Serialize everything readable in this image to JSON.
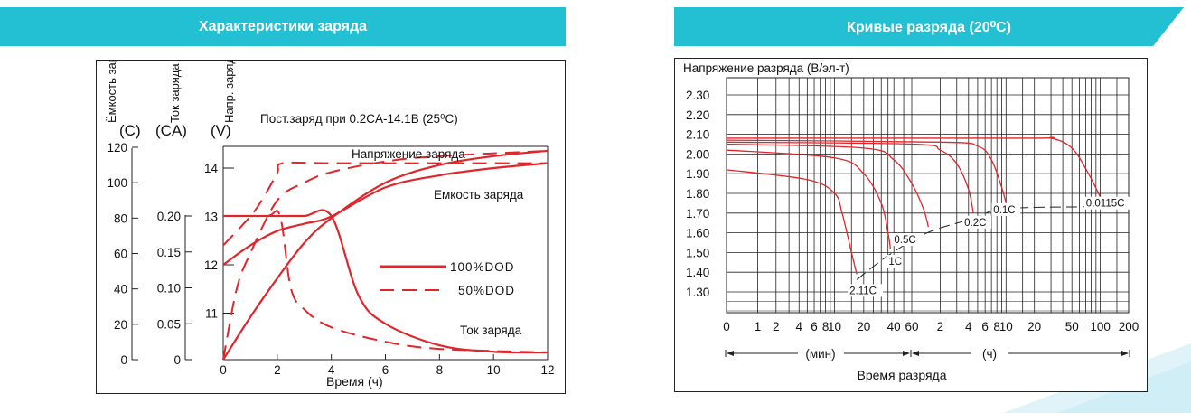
{
  "colors": {
    "banner": "#23bfd3",
    "curve": "#e0262b",
    "axis": "#222222"
  },
  "left": {
    "banner_title": "Характеристики заряда",
    "axes_titles": {
      "capacity": "Ёмкость заряда",
      "current": "Ток заряда",
      "voltage": "Напр. заряда"
    },
    "units": {
      "capacity": "(C)",
      "current": "(CA)",
      "voltage": "(V)"
    },
    "subtitle": "Пост.заряд при 0.2CA-14.1В (25⁰C)",
    "xlabel": "Время (ч)",
    "labels": {
      "voltage": "Напряжение заряда",
      "capacity": "Емкость заряда",
      "current": "Ток заряда"
    },
    "legend": [
      {
        "label": "100%DOD",
        "style": "solid"
      },
      {
        "label": "50%DOD",
        "style": "dashed"
      }
    ],
    "x_ticks": [
      "0",
      "2",
      "4",
      "6",
      "8",
      "10",
      "12"
    ],
    "capacity_ticks": [
      "0",
      "20",
      "40",
      "60",
      "80",
      "100",
      "120"
    ],
    "current_ticks": [
      "0",
      "0.05",
      "0.10",
      "0.15",
      "0.20"
    ],
    "voltage_ticks": [
      "11",
      "12",
      "13",
      "14"
    ]
  },
  "right": {
    "banner_title": "Кривые разряда (20⁰C)",
    "ylabel": "Напряжение разряда (В/эл-т)",
    "xlabel": "Время разряда",
    "y_ticks": [
      "2.30",
      "2.20",
      "2.10",
      "2.00",
      "1.90",
      "1.80",
      "1.70",
      "1.60",
      "1.50",
      "1.40",
      "1.30"
    ],
    "x_ticks_min": [
      "0",
      "1",
      "2",
      "4",
      "6",
      "8",
      "10",
      "20",
      "40",
      "60"
    ],
    "x_ticks_h": [
      "2",
      "4",
      "6",
      "8",
      "10",
      "20",
      "50",
      "100",
      "200"
    ],
    "range_min": "(мин)",
    "range_h": "(ч)",
    "rate_labels": [
      "2.11C",
      "1C",
      "0.5C",
      "0.2C",
      "0.1C",
      "0.0115C"
    ]
  },
  "chart_data": [
    {
      "type": "line",
      "title": "Пост.заряд при 0.2CA-14.1В (25⁰C)",
      "xlabel": "Время (ч)",
      "xlim": [
        0,
        12
      ],
      "axes": {
        "capacity": [
          0,
          120
        ],
        "current": [
          0,
          0.25
        ],
        "voltage": [
          10,
          14.5
        ]
      },
      "series": [
        {
          "name": "100%DOD",
          "variable": "voltage",
          "style": "solid",
          "x": [
            0,
            1,
            2,
            3,
            4,
            6,
            8,
            10,
            12
          ],
          "y": [
            12.0,
            12.4,
            12.7,
            12.85,
            13.0,
            13.6,
            13.85,
            14.0,
            14.1
          ]
        },
        {
          "name": "100%DOD",
          "variable": "capacity",
          "style": "solid",
          "x": [
            0,
            1,
            2,
            3,
            4,
            6,
            8,
            10,
            12
          ],
          "y": [
            0,
            24,
            46,
            66,
            80,
            100,
            110,
            115,
            118
          ]
        },
        {
          "name": "100%DOD",
          "variable": "current",
          "style": "solid",
          "x": [
            0,
            1,
            2,
            3,
            4,
            5,
            6,
            8,
            10,
            12
          ],
          "y": [
            0.2,
            0.2,
            0.2,
            0.2,
            0.2,
            0.09,
            0.05,
            0.02,
            0.011,
            0.01
          ]
        },
        {
          "name": "50%DOD",
          "variable": "voltage",
          "style": "dashed",
          "x": [
            0,
            1,
            1.5,
            2,
            2.2,
            4,
            8,
            12
          ],
          "y": [
            12.4,
            13.0,
            13.4,
            13.9,
            14.1,
            14.1,
            14.1,
            14.1
          ]
        },
        {
          "name": "50%DOD",
          "variable": "capacity",
          "style": "dashed",
          "x": [
            0,
            0.5,
            1,
            2,
            3,
            4,
            6,
            8,
            12
          ],
          "y": [
            0,
            40,
            60,
            90,
            100,
            106,
            112,
            115,
            118
          ]
        },
        {
          "name": "50%DOD",
          "variable": "current",
          "style": "dashed",
          "x": [
            0,
            1.6,
            2.1,
            2.5,
            3,
            4,
            6,
            8,
            12
          ],
          "y": [
            0.2,
            0.2,
            0.2,
            0.1,
            0.07,
            0.045,
            0.025,
            0.015,
            0.01
          ]
        }
      ]
    },
    {
      "type": "line",
      "title": "Кривые разряда (20⁰C)",
      "ylabel": "Напряжение разряда (В/эл-т)",
      "xlabel": "Время разряда",
      "xscale": "log",
      "ylim": [
        1.2,
        2.4
      ],
      "series": [
        {
          "name": "2.11C",
          "x_min": [
            0.1,
            5,
            10,
            12,
            15,
            17
          ],
          "y": [
            1.92,
            1.87,
            1.8,
            1.7,
            1.5,
            1.39
          ]
        },
        {
          "name": "1C",
          "x_min": [
            0.1,
            10,
            20,
            30,
            35,
            37
          ],
          "y": [
            2.02,
            1.98,
            1.9,
            1.75,
            1.6,
            1.52
          ]
        },
        {
          "name": "0.5C",
          "x_min": [
            0.1,
            20,
            40,
            60,
            80,
            90
          ],
          "y": [
            2.05,
            2.03,
            1.97,
            1.85,
            1.72,
            1.63
          ]
        },
        {
          "name": "0.2C",
          "x_min": [
            0.1,
            60,
            120,
            180,
            240,
            270
          ],
          "y": [
            2.06,
            2.05,
            2.02,
            1.95,
            1.82,
            1.7
          ]
        },
        {
          "name": "0.1C",
          "x_min": [
            0.1,
            120,
            300,
            420,
            540,
            600
          ],
          "y": [
            2.07,
            2.06,
            2.04,
            1.97,
            1.83,
            1.75
          ]
        },
        {
          "name": "0.0115C",
          "x_min": [
            0.1,
            900,
            1800,
            3000,
            4500,
            6300
          ],
          "y": [
            2.08,
            2.08,
            2.08,
            2.03,
            1.9,
            1.76
          ]
        }
      ]
    }
  ]
}
